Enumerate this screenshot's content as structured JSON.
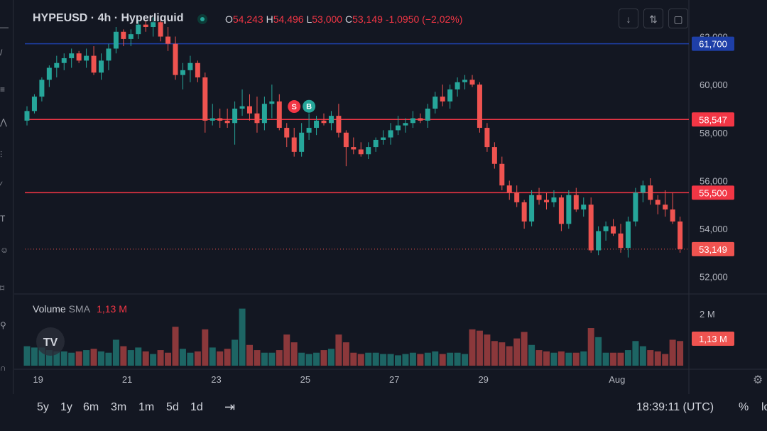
{
  "header": {
    "symbol": "HYPEUSD · 4h · Hyperliquid",
    "open_k": "O",
    "open_v": "54,243",
    "high_k": "H",
    "high_v": "54,496",
    "low_k": "L",
    "low_v": "53,000",
    "close_k": "C",
    "close_v": "53,149",
    "change": "-1,0950 (−2,02%)"
  },
  "volume_legend": {
    "name": "Volume",
    "sma": "SMA",
    "value": "1,13 M"
  },
  "bottom": {
    "timeframes": [
      "5y",
      "1y",
      "6m",
      "3m",
      "1m",
      "5d",
      "1d"
    ],
    "clock": "18:39:11 (UTC)",
    "percent": "%",
    "log": "lo"
  },
  "colors": {
    "up": "#26a69a",
    "down": "#ef5350",
    "hline": "#f23645",
    "blue_line": "#1e3fa8",
    "background": "#131722"
  },
  "chart_data": {
    "type": "candlestick",
    "symbol": "HYPEUSD",
    "interval": "4h",
    "exchange": "Hyperliquid",
    "y_axis": {
      "ylim": [
        51400,
        62400
      ],
      "ticks": [
        "52,000",
        "54,000",
        "56,000",
        "58,000",
        "60,000",
        "62,000"
      ],
      "tick_values": [
        52000,
        54000,
        56000,
        58000,
        60000,
        62000
      ]
    },
    "x_axis": {
      "ticks": [
        "19",
        "21",
        "23",
        "25",
        "27",
        "29",
        "Aug"
      ],
      "tick_positions": [
        1.5,
        13.5,
        25.5,
        37.5,
        49.5,
        61.5,
        79.5
      ]
    },
    "horizontal_lines": [
      {
        "value": 61700,
        "label": "61,700",
        "color": "#1e3fa8"
      },
      {
        "value": 58547,
        "label": "58,547",
        "color": "#f23645"
      },
      {
        "value": 55500,
        "label": "55,500",
        "color": "#f23645"
      }
    ],
    "last_price": {
      "value": 53149,
      "label": "53,149"
    },
    "markers": [
      {
        "index": 36,
        "text": "S",
        "type": "sell"
      },
      {
        "index": 38,
        "text": "B",
        "type": "buy"
      }
    ],
    "candles": [
      [
        58500,
        59100,
        58300,
        58900
      ],
      [
        58900,
        59600,
        58800,
        59500
      ],
      [
        59500,
        60300,
        59300,
        60200
      ],
      [
        60200,
        60800,
        59900,
        60700
      ],
      [
        60700,
        61200,
        60300,
        60900
      ],
      [
        60900,
        61300,
        60600,
        61100
      ],
      [
        61100,
        61500,
        60700,
        61300
      ],
      [
        61300,
        61400,
        60900,
        61000
      ],
      [
        61000,
        61500,
        60700,
        61200
      ],
      [
        61200,
        61600,
        60400,
        60500
      ],
      [
        60500,
        61300,
        60200,
        61000
      ],
      [
        61000,
        61700,
        60600,
        61500
      ],
      [
        61500,
        62400,
        61300,
        62200
      ],
      [
        62200,
        62300,
        61600,
        61900
      ],
      [
        61900,
        62300,
        61600,
        62100
      ],
      [
        62100,
        62700,
        61900,
        62500
      ],
      [
        62500,
        62700,
        62200,
        62400
      ],
      [
        62400,
        62800,
        62000,
        62600
      ],
      [
        62600,
        62800,
        61800,
        62000
      ],
      [
        62000,
        62400,
        61400,
        61700
      ],
      [
        61700,
        62000,
        60200,
        60400
      ],
      [
        60400,
        60900,
        59800,
        60600
      ],
      [
        60600,
        61200,
        60100,
        60900
      ],
      [
        60900,
        61000,
        60100,
        60300
      ],
      [
        60300,
        60500,
        58000,
        58500
      ],
      [
        58500,
        59200,
        58300,
        58600
      ],
      [
        58600,
        59000,
        58200,
        58500
      ],
      [
        58500,
        59000,
        58200,
        58400
      ],
      [
        58400,
        59300,
        57500,
        59000
      ],
      [
        59000,
        59800,
        58700,
        59100
      ],
      [
        59100,
        59600,
        58500,
        58800
      ],
      [
        58800,
        59500,
        58000,
        58400
      ],
      [
        58400,
        59500,
        58100,
        59200
      ],
      [
        59200,
        60000,
        58600,
        59300
      ],
      [
        59300,
        59600,
        58100,
        58200
      ],
      [
        58200,
        58400,
        57400,
        57800
      ],
      [
        57800,
        58200,
        57000,
        57200
      ],
      [
        57200,
        58400,
        57000,
        58000
      ],
      [
        58000,
        58800,
        57700,
        58200
      ],
      [
        58200,
        58700,
        57900,
        58500
      ],
      [
        58500,
        58800,
        58300,
        58400
      ],
      [
        58400,
        58900,
        58100,
        58700
      ],
      [
        58700,
        59200,
        57800,
        58000
      ],
      [
        58000,
        58100,
        56600,
        57400
      ],
      [
        57400,
        57800,
        57100,
        57300
      ],
      [
        57300,
        57600,
        57000,
        57100
      ],
      [
        57100,
        57600,
        56900,
        57400
      ],
      [
        57400,
        57800,
        57200,
        57700
      ],
      [
        57700,
        58100,
        57500,
        57800
      ],
      [
        57800,
        58400,
        57500,
        58100
      ],
      [
        58100,
        58700,
        57900,
        58300
      ],
      [
        58300,
        58600,
        58000,
        58400
      ],
      [
        58400,
        58900,
        58200,
        58600
      ],
      [
        58600,
        58800,
        58400,
        58500
      ],
      [
        58500,
        59200,
        58200,
        59000
      ],
      [
        59000,
        59700,
        58800,
        59500
      ],
      [
        59500,
        60000,
        59100,
        59300
      ],
      [
        59300,
        60000,
        59000,
        59800
      ],
      [
        59800,
        60300,
        59500,
        60100
      ],
      [
        60100,
        60400,
        59800,
        60200
      ],
      [
        60200,
        60400,
        59900,
        60000
      ],
      [
        60000,
        60100,
        58000,
        58200
      ],
      [
        58200,
        58400,
        57200,
        57400
      ],
      [
        57400,
        57600,
        56500,
        56700
      ],
      [
        56700,
        57000,
        55600,
        55800
      ],
      [
        55800,
        56000,
        55200,
        55500
      ],
      [
        55500,
        55800,
        54900,
        55100
      ],
      [
        55100,
        55200,
        54000,
        54300
      ],
      [
        54300,
        55600,
        54100,
        55400
      ],
      [
        55400,
        55700,
        55000,
        55200
      ],
      [
        55200,
        55500,
        54800,
        55100
      ],
      [
        55100,
        55600,
        54900,
        55300
      ],
      [
        55300,
        55400,
        53900,
        54200
      ],
      [
        54200,
        55600,
        54000,
        55400
      ],
      [
        55400,
        55700,
        54700,
        54800
      ],
      [
        54800,
        55300,
        54500,
        55000
      ],
      [
        55000,
        55300,
        53000,
        53100
      ],
      [
        53100,
        54100,
        52900,
        53900
      ],
      [
        53900,
        54300,
        53500,
        54100
      ],
      [
        54100,
        54400,
        53700,
        53800
      ],
      [
        53800,
        54200,
        53000,
        53200
      ],
      [
        53200,
        54500,
        52800,
        54300
      ],
      [
        54300,
        55700,
        54100,
        55500
      ],
      [
        55500,
        56000,
        55100,
        55800
      ],
      [
        55800,
        56100,
        55000,
        55200
      ],
      [
        55200,
        55400,
        54600,
        55000
      ],
      [
        55000,
        55600,
        54500,
        54800
      ],
      [
        54800,
        55500,
        54200,
        54300
      ],
      [
        54300,
        54500,
        53000,
        53149
      ]
    ],
    "volume": {
      "label": "Volume",
      "sma_value": "1,13 M",
      "ylim": [
        0,
        2.6
      ],
      "ticks": [
        "2 M"
      ],
      "tick_values": [
        2.0
      ],
      "last_label": "1,13 M",
      "values": [
        0.75,
        0.7,
        0.7,
        0.6,
        0.55,
        0.55,
        0.5,
        0.55,
        0.6,
        0.65,
        0.55,
        0.5,
        1.0,
        0.75,
        0.6,
        0.7,
        0.55,
        0.45,
        0.6,
        0.5,
        1.5,
        0.65,
        0.5,
        0.55,
        1.4,
        0.7,
        0.55,
        0.65,
        1.0,
        2.2,
        0.8,
        0.6,
        0.5,
        0.5,
        0.6,
        1.2,
        0.9,
        0.5,
        0.45,
        0.5,
        0.6,
        0.65,
        1.2,
        0.9,
        0.5,
        0.45,
        0.5,
        0.5,
        0.45,
        0.45,
        0.4,
        0.45,
        0.5,
        0.45,
        0.5,
        0.55,
        0.45,
        0.5,
        0.5,
        0.45,
        1.4,
        1.35,
        1.2,
        0.95,
        0.9,
        0.75,
        1.05,
        1.3,
        0.8,
        0.6,
        0.55,
        0.5,
        0.55,
        0.5,
        0.5,
        0.55,
        1.45,
        1.1,
        0.5,
        0.5,
        0.5,
        0.6,
        0.95,
        0.75,
        0.6,
        0.55,
        0.45,
        1.0,
        0.95
      ]
    }
  }
}
